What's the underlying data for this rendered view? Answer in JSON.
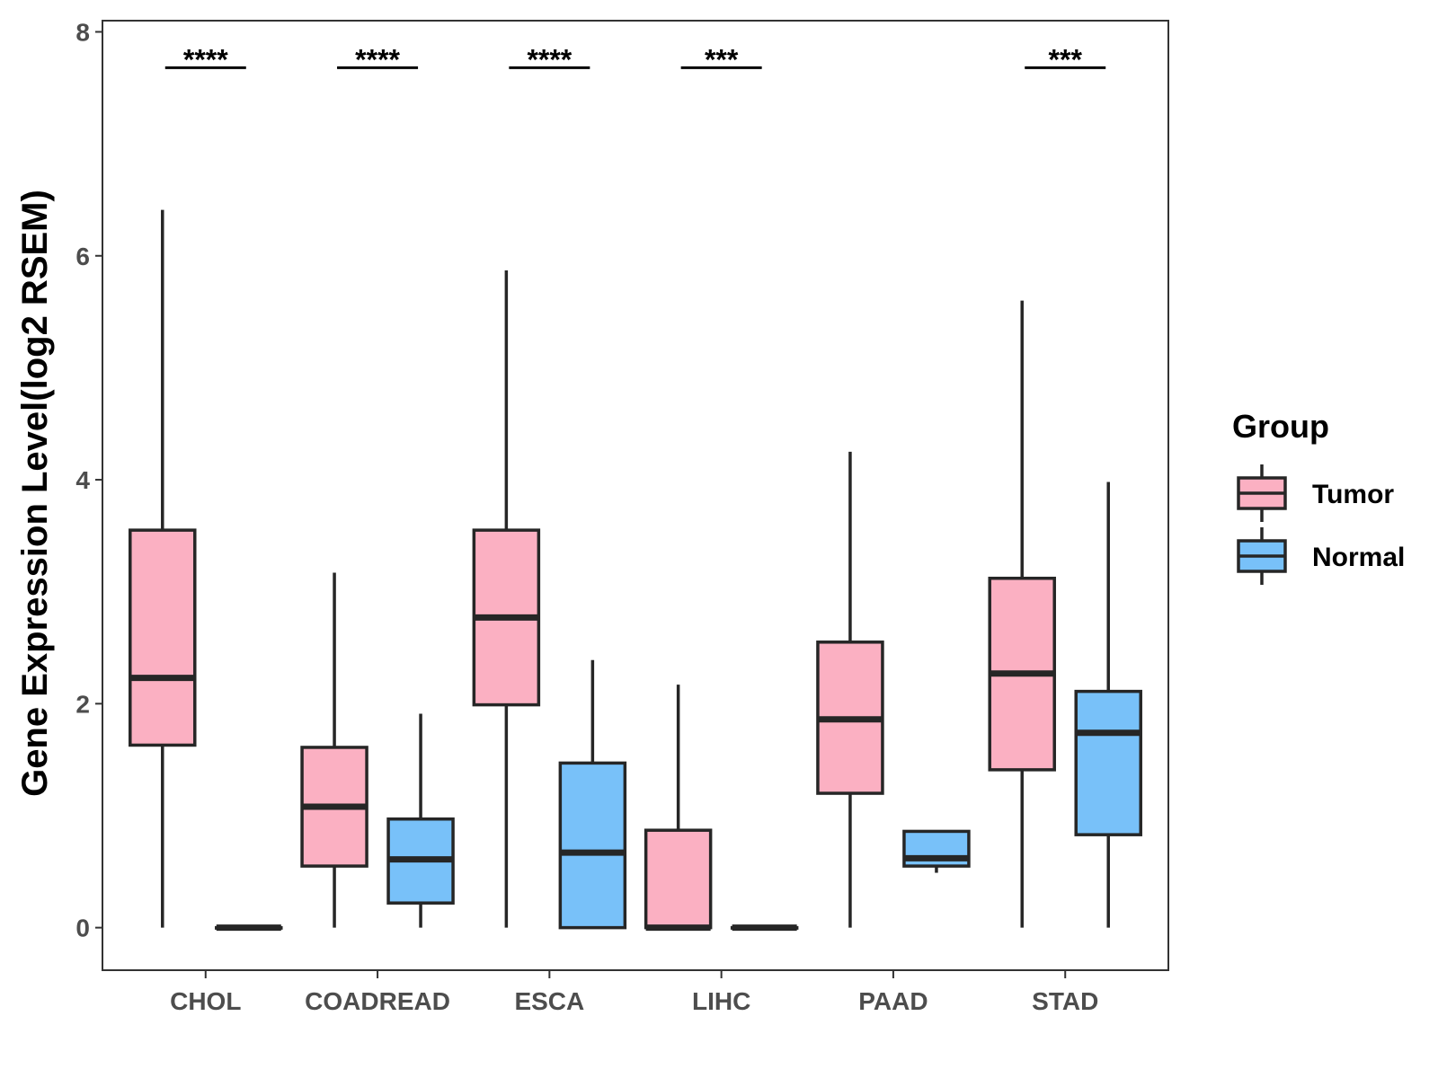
{
  "chart_data": {
    "type": "boxplot",
    "title": "",
    "xlabel": "",
    "ylabel": "Gene Expression Level(log2 RSEM)",
    "ylim": [
      -0.38,
      8.1
    ],
    "yticks": [
      "0",
      "2",
      "4",
      "6",
      "8"
    ],
    "categories": [
      "CHOL",
      "COADREAD",
      "ESCA",
      "LIHC",
      "PAAD",
      "STAD"
    ],
    "series": [
      {
        "name": "Tumor",
        "color": "#FBB0C2",
        "boxes": [
          {
            "lower": 0.0,
            "q1": 1.63,
            "median": 2.23,
            "q3": 3.55,
            "upper": 6.41
          },
          {
            "lower": 0.0,
            "q1": 0.55,
            "median": 1.08,
            "q3": 1.61,
            "upper": 3.17
          },
          {
            "lower": 0.0,
            "q1": 1.99,
            "median": 2.77,
            "q3": 3.55,
            "upper": 5.87
          },
          {
            "lower": 0.0,
            "q1": 0.0,
            "median": 0.0,
            "q3": 0.87,
            "upper": 2.17
          },
          {
            "lower": 0.0,
            "q1": 1.2,
            "median": 1.86,
            "q3": 2.55,
            "upper": 4.25
          },
          {
            "lower": 0.0,
            "q1": 1.41,
            "median": 2.27,
            "q3": 3.12,
            "upper": 5.6
          }
        ]
      },
      {
        "name": "Normal",
        "color": "#78C1F9",
        "boxes": [
          {
            "lower": 0.0,
            "q1": 0.0,
            "median": 0.0,
            "q3": 0.0,
            "upper": 0.0
          },
          {
            "lower": 0.0,
            "q1": 0.22,
            "median": 0.61,
            "q3": 0.97,
            "upper": 1.91
          },
          {
            "lower": 0.0,
            "q1": 0.0,
            "median": 0.67,
            "q3": 1.47,
            "upper": 2.39
          },
          {
            "lower": 0.0,
            "q1": 0.0,
            "median": 0.0,
            "q3": 0.0,
            "upper": 0.0
          },
          {
            "lower": 0.49,
            "q1": 0.55,
            "median": 0.62,
            "q3": 0.86,
            "upper": 0.86
          },
          {
            "lower": 0.0,
            "q1": 0.83,
            "median": 1.74,
            "q3": 2.11,
            "upper": 3.98
          }
        ]
      }
    ],
    "significance": [
      {
        "category": "CHOL",
        "label": "****"
      },
      {
        "category": "COADREAD",
        "label": "****"
      },
      {
        "category": "ESCA",
        "label": "****"
      },
      {
        "category": "LIHC",
        "label": "***"
      },
      {
        "category": "PAAD",
        "label": ""
      },
      {
        "category": "STAD",
        "label": "***"
      }
    ],
    "significance_y": 7.68,
    "legend": {
      "title": "Group",
      "position": "right",
      "entries": [
        "Tumor",
        "Normal"
      ]
    }
  }
}
